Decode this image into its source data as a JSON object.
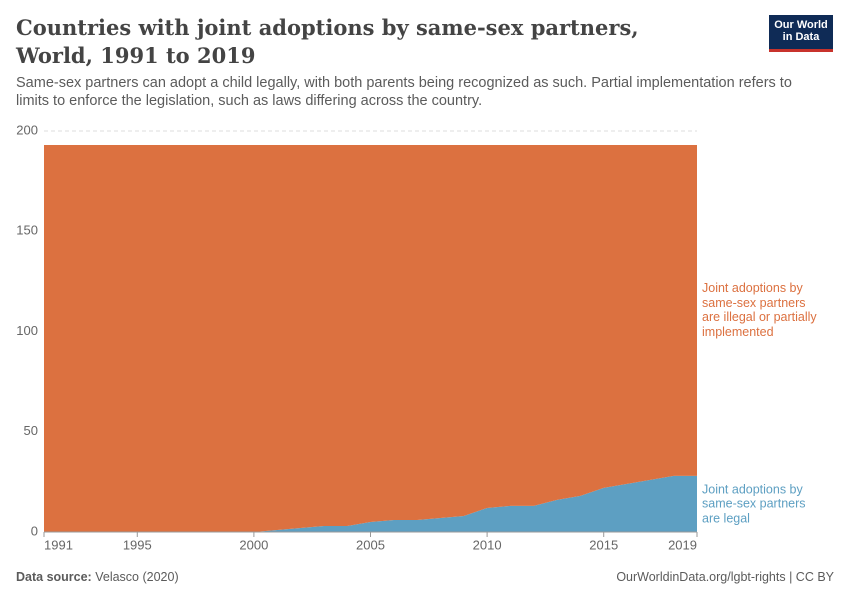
{
  "chart_data": {
    "type": "area",
    "stacked": true,
    "title": "Countries with joint adoptions by same-sex partners, World, 1991 to 2019",
    "subtitle": "Same-sex partners can adopt a child legally, with both parents being recognized as such. Partial implementation refers to limits to enforce the legislation, such as laws differing across the country.",
    "x": [
      1991,
      1992,
      1993,
      1994,
      1995,
      1996,
      1997,
      1998,
      1999,
      2000,
      2001,
      2002,
      2003,
      2004,
      2005,
      2006,
      2007,
      2008,
      2009,
      2010,
      2011,
      2012,
      2013,
      2014,
      2015,
      2016,
      2017,
      2018,
      2019
    ],
    "series": [
      {
        "name": "Joint adoptions by same-sex partners are legal",
        "color": "#5d9fc2",
        "values": [
          0,
          0,
          0,
          0,
          0,
          0,
          0,
          0,
          0,
          0,
          1,
          2,
          3,
          3,
          5,
          6,
          6,
          7,
          8,
          12,
          13,
          13,
          16,
          18,
          22,
          24,
          26,
          28,
          28
        ]
      },
      {
        "name": "Joint adoptions by same-sex partners are illegal or partially implemented",
        "color": "#dc7140",
        "values": [
          193,
          193,
          193,
          193,
          193,
          193,
          193,
          193,
          193,
          193,
          192,
          191,
          190,
          190,
          188,
          187,
          187,
          186,
          185,
          181,
          180,
          180,
          177,
          175,
          171,
          169,
          167,
          165,
          165
        ]
      }
    ],
    "xlim": [
      1991,
      2019
    ],
    "xticks": [
      1991,
      1995,
      2000,
      2005,
      2010,
      2015,
      2019
    ],
    "ylim": [
      0,
      200
    ],
    "yticks": [
      0,
      50,
      100,
      150,
      200
    ],
    "grid": true
  },
  "logo": [
    "Our World",
    "in Data"
  ],
  "footer": {
    "source_label": "Data source:",
    "source": "Velasco (2020)",
    "url": "OurWorldinData.org/lgbt-rights | CC BY"
  }
}
